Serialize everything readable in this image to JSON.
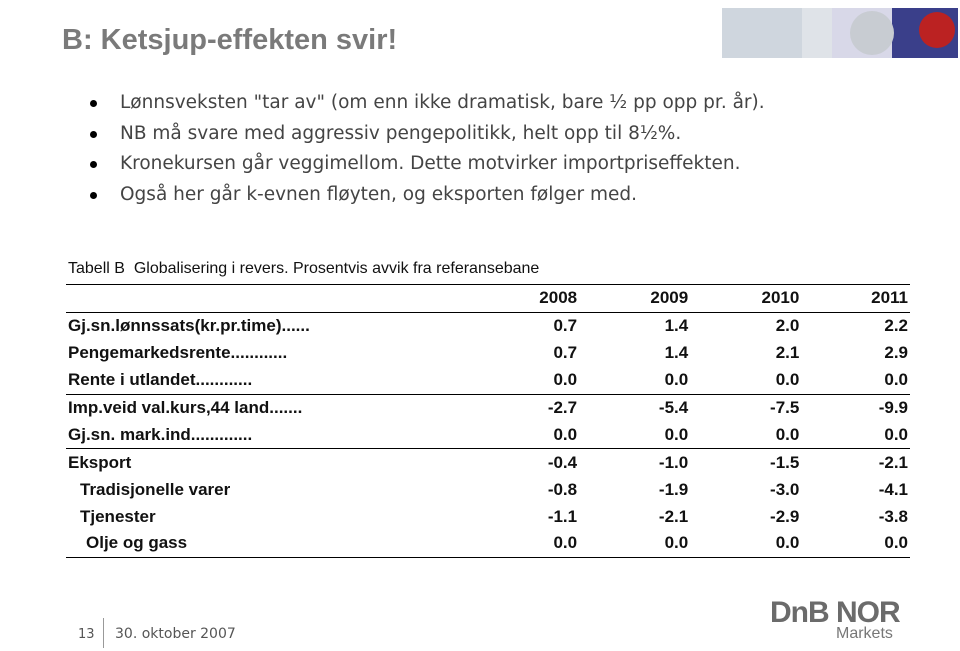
{
  "header": {
    "title": "B: Ketsjup-effekten svir!"
  },
  "bullets": [
    "Lønnsveksten \"tar av\" (om enn ikke dramatisk, bare ½ pp opp pr. år).",
    "NB må svare med aggressiv pengepolitikk, helt opp til 8½%.",
    "Kronekursen går veggimellom. Dette motvirker importpriseffekten.",
    "Også her går k-evnen fløyten, og eksporten følger med."
  ],
  "table": {
    "caption": "Tabell B  Globalisering i revers. Prosentvis avvik fra referansebane",
    "columns": [
      "2008",
      "2009",
      "2010",
      "2011"
    ],
    "rows": [
      [
        "Gj.sn.lønnssats(kr.pr.time)......",
        "0.7",
        "1.4",
        "2.0",
        "2.2"
      ],
      [
        "Pengemarkedsrente............",
        "0.7",
        "1.4",
        "2.1",
        "2.9"
      ],
      [
        "Rente i utlandet............",
        "0.0",
        "0.0",
        "0.0",
        "0.0"
      ],
      [
        "Imp.veid val.kurs,44 land.......",
        "-2.7",
        "-5.4",
        "-7.5",
        "-9.9"
      ],
      [
        "Gj.sn. mark.ind.............",
        "0.0",
        "0.0",
        "0.0",
        "0.0"
      ],
      [
        "Eksport",
        "-0.4",
        "-1.0",
        "-1.5",
        "-2.1"
      ],
      [
        "Tradisjonelle varer",
        "-0.8",
        "-1.9",
        "-3.0",
        "-4.1"
      ],
      [
        "Tjenester",
        "-1.1",
        "-2.1",
        "-2.9",
        "-3.8"
      ],
      [
        "Olje og gass",
        "0.0",
        "0.0",
        "0.0",
        "0.0"
      ]
    ]
  },
  "footer": {
    "page": "13",
    "date": "30. oktober 2007",
    "logo": "DnB NOR",
    "logo_sub": "Markets"
  }
}
